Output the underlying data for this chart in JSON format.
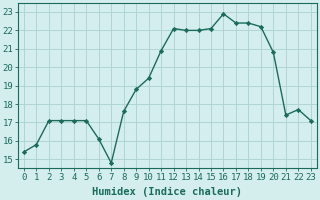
{
  "x": [
    0,
    1,
    2,
    3,
    4,
    5,
    6,
    7,
    8,
    9,
    10,
    11,
    12,
    13,
    14,
    15,
    16,
    17,
    18,
    19,
    20,
    21,
    22,
    23
  ],
  "y": [
    15.4,
    15.8,
    17.1,
    17.1,
    17.1,
    17.1,
    16.1,
    14.8,
    17.6,
    18.8,
    19.4,
    20.9,
    22.1,
    22.0,
    22.0,
    22.1,
    22.9,
    22.4,
    22.4,
    22.2,
    20.8,
    17.4,
    17.7,
    17.1
  ],
  "line_color": "#1a6b5a",
  "marker": "D",
  "marker_size": 2.2,
  "bg_color": "#d4eeee",
  "grid_color": "#b0d4d4",
  "xlabel": "Humidex (Indice chaleur)",
  "xlim": [
    -0.5,
    23.5
  ],
  "ylim": [
    14.5,
    23.5
  ],
  "yticks": [
    15,
    16,
    17,
    18,
    19,
    20,
    21,
    22,
    23
  ],
  "xticks": [
    0,
    1,
    2,
    3,
    4,
    5,
    6,
    7,
    8,
    9,
    10,
    11,
    12,
    13,
    14,
    15,
    16,
    17,
    18,
    19,
    20,
    21,
    22,
    23
  ],
  "xlabel_fontsize": 7.5,
  "tick_fontsize": 6.5,
  "linewidth": 1.0
}
